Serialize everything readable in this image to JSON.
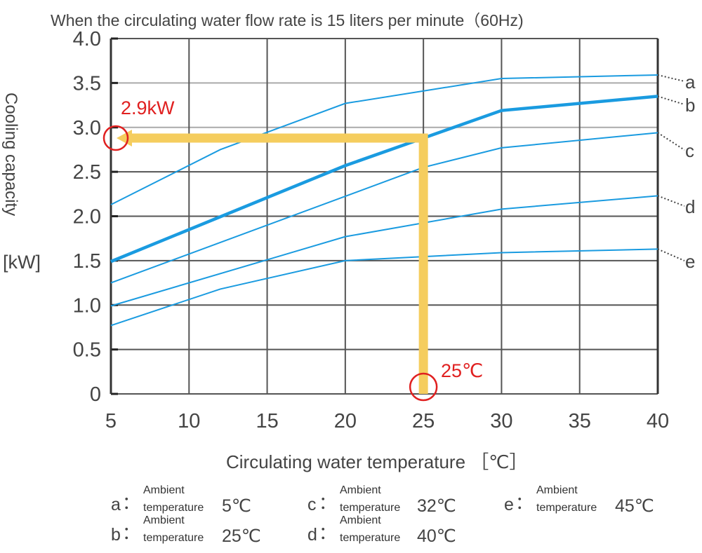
{
  "chart_data": {
    "type": "line",
    "title": "When the circulating water flow rate is 15 liters per minute（60Hz)",
    "xlabel": "Circulating water temperature ［℃］",
    "ylabel": "Cooling capacity",
    "yunit": "[kW]",
    "xlim": [
      5,
      40
    ],
    "ylim": [
      0,
      4.0
    ],
    "xticks": [
      "5",
      "10",
      "15",
      "20",
      "25",
      "30",
      "35",
      "40"
    ],
    "yticks": [
      "0",
      "0.5",
      "1.0",
      "1.5",
      "2.0",
      "2.5",
      "3.0",
      "3.5",
      "4.0"
    ],
    "grid": true,
    "series": [
      {
        "name": "a",
        "points": [
          [
            5,
            2.13
          ],
          [
            12,
            2.75
          ],
          [
            20,
            3.27
          ],
          [
            30,
            3.55
          ],
          [
            40,
            3.59
          ]
        ]
      },
      {
        "name": "b",
        "points": [
          [
            5,
            1.49
          ],
          [
            20,
            2.57
          ],
          [
            25,
            2.88
          ],
          [
            30,
            3.19
          ],
          [
            40,
            3.35
          ]
        ],
        "bold": true
      },
      {
        "name": "c",
        "points": [
          [
            5,
            1.25
          ],
          [
            25,
            2.55
          ],
          [
            30,
            2.77
          ],
          [
            40,
            2.94
          ]
        ]
      },
      {
        "name": "d",
        "points": [
          [
            5,
            0.99
          ],
          [
            20,
            1.77
          ],
          [
            30,
            2.08
          ],
          [
            40,
            2.23
          ]
        ]
      },
      {
        "name": "e",
        "points": [
          [
            5,
            0.77
          ],
          [
            12,
            1.18
          ],
          [
            20,
            1.5
          ],
          [
            30,
            1.59
          ],
          [
            40,
            1.63
          ]
        ]
      }
    ],
    "annotation": {
      "x": 25,
      "y": 2.88,
      "x_label": "25℃",
      "y_label": "2.9kW",
      "guide_color": "#f5cd5e",
      "marker_color": "#e02020"
    },
    "line_color": "#1a9be0",
    "legend": [
      {
        "key": "a",
        "sep": "：",
        "line1": "Ambient",
        "line2": "temperature",
        "value": "5℃"
      },
      {
        "key": "b",
        "sep": "：",
        "line1": "Ambient",
        "line2": "temperature",
        "value": "25℃"
      },
      {
        "key": "c",
        "sep": "：",
        "line1": "Ambient",
        "line2": "temperature",
        "value": "32℃"
      },
      {
        "key": "d",
        "sep": "：",
        "line1": "Ambient",
        "line2": "temperature",
        "value": "40℃"
      },
      {
        "key": "e",
        "sep": "：",
        "line1": "Ambient",
        "line2": "temperature",
        "value": "45℃"
      }
    ]
  }
}
